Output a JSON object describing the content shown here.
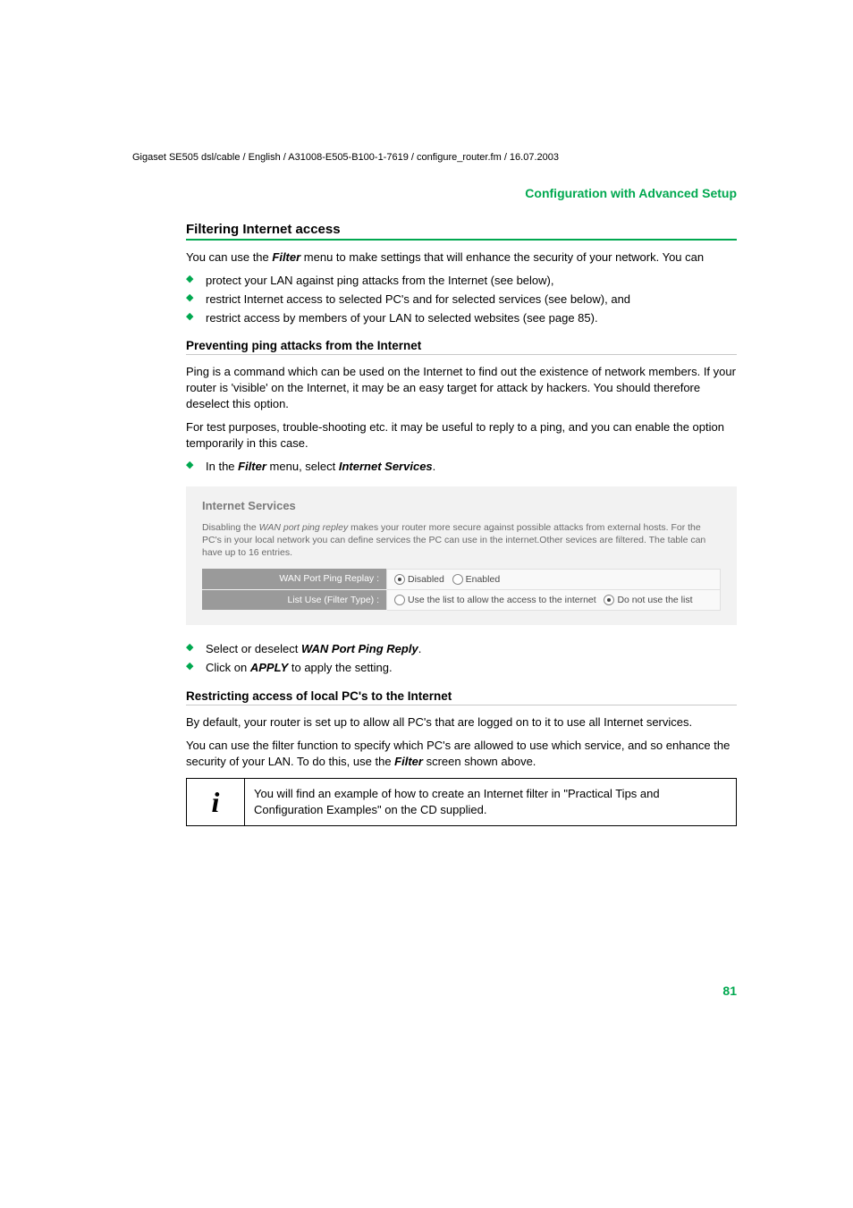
{
  "header": {
    "path": "Gigaset SE505 dsl/cable / English / A31008-E505-B100-1-7619 / configure_router.fm / 16.07.2003"
  },
  "section_title": "Configuration with Advanced Setup",
  "h2_filtering": "Filtering Internet access",
  "p_intro_1": "You can use the ",
  "p_intro_filter": "Filter",
  "p_intro_2": " menu to make settings that will enhance the security of your network. You can",
  "bullets_intro": [
    "protect your LAN against ping attacks from the Internet (see below),",
    "restrict Internet access to selected PC's and for selected services (see below), and",
    "restrict access by members of your LAN to selected websites (see page 85)."
  ],
  "h3_ping": "Preventing ping attacks from the Internet",
  "p_ping_1": "Ping is a command which can be used on the Internet to find out the existence of network members. If your router is 'visible' on the Internet, it may be an easy target for attack by hackers. You should therefore deselect this option.",
  "p_ping_2": "For test purposes, trouble-shooting etc. it may be useful to reply to a ping, and you can enable the option temporarily in this case.",
  "bullet_ping_pre": "In the ",
  "bullet_ping_filter": "Filter",
  "bullet_ping_mid": " menu, select ",
  "bullet_ping_is": "Internet Services",
  "bullet_ping_end": ".",
  "screenshot": {
    "title": "Internet Services",
    "desc_1": "Disabling the ",
    "desc_italic": "WAN port ping repley",
    "desc_2": " makes your router more secure against possible attacks from external hosts. For the PC's in your local network you can define services the PC can use in the internet.Other sevices are filtered. The table can have up to 16 entries.",
    "row1_label": "WAN Port Ping Replay :",
    "row1_opt1": "Disabled",
    "row1_opt2": "Enabled",
    "row2_label": "List Use (Filter Type) :",
    "row2_opt1": "Use the list to allow the access to the internet",
    "row2_opt2": "Do not use the list"
  },
  "bullet_select_pre": "Select or deselect ",
  "bullet_select_bold": "WAN Port Ping Reply",
  "bullet_select_end": ".",
  "bullet_apply_pre": "Click on ",
  "bullet_apply_bold": "APPLY",
  "bullet_apply_end": " to apply the setting.",
  "h3_restrict": "Restricting access of local PC's to the Internet",
  "p_restrict_1": "By default, your router is set up to allow all PC's that are logged on to it to use all Internet services.",
  "p_restrict_2a": "You can use the filter function to specify which PC's are allowed to use which service, and so enhance the security of your LAN. To do this, use the ",
  "p_restrict_2_filter": "Filter",
  "p_restrict_2b": " screen shown above.",
  "info_icon": "i",
  "info_text": "You will find an example of how to create an Internet filter in \"Practical Tips and Configuration Examples\" on the CD supplied.",
  "page_number": "81"
}
